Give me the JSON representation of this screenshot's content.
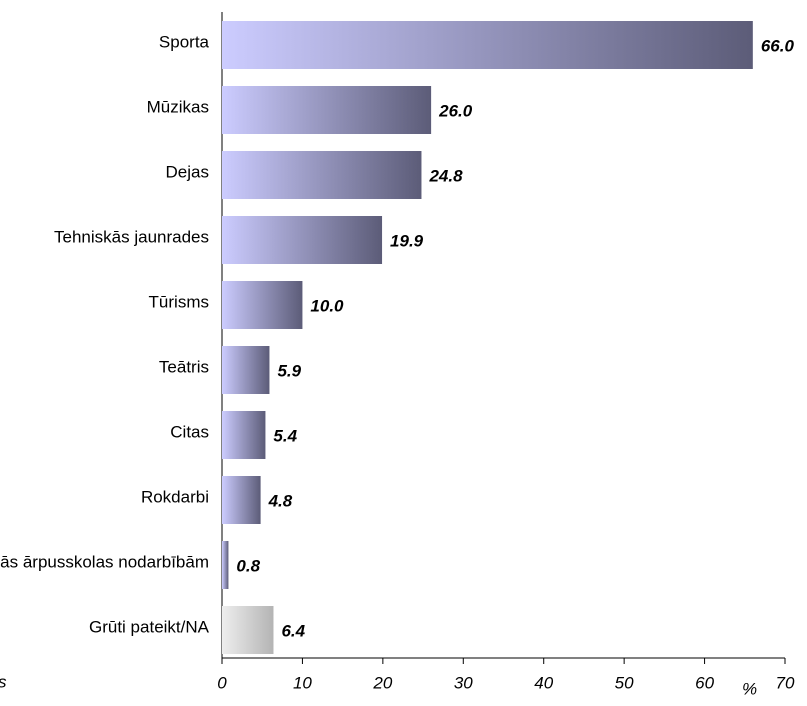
{
  "chart_data": {
    "type": "hbar",
    "categories": [
      "Sporta",
      "Mūzikas",
      "Dejas",
      "Tehniskās jaunrades",
      "Tūrisms",
      "Teātris",
      "Citas",
      "Rokdarbi",
      "Nepiedalās ārpusskolas nodarbībām",
      "Grūti pateikt/NA"
    ],
    "values": [
      66.0,
      26.0,
      24.8,
      19.9,
      10.0,
      5.9,
      5.4,
      4.8,
      0.8,
      6.4
    ],
    "value_labels": [
      "66.0",
      "26.0",
      "24.8",
      "19.9",
      "10.0",
      "5.9",
      "5.4",
      "4.8",
      "0.8",
      "6.4"
    ],
    "colors": [
      "#5c5c78",
      "#5c5c78",
      "#5c5c78",
      "#5c5c78",
      "#5c5c78",
      "#5c5c78",
      "#5c5c78",
      "#5c5c78",
      "#5c5c78",
      "#b4b4b4"
    ],
    "xlim": [
      0,
      70
    ],
    "xticks": [
      0,
      10,
      20,
      30,
      40,
      50,
      60,
      70
    ],
    "x_label": "%",
    "note": "s"
  }
}
